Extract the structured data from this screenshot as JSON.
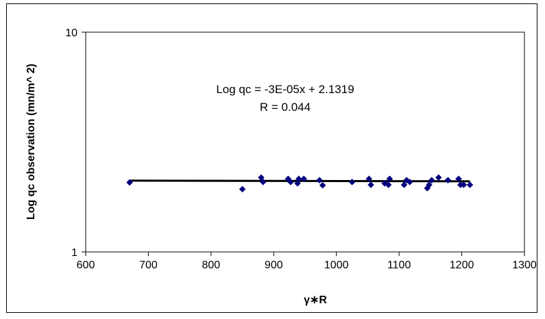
{
  "chart_data": {
    "type": "scatter",
    "xlabel": "γ∗R",
    "ylabel": "Log qc observation (mn/m^ 2)",
    "xlim": [
      600,
      1300
    ],
    "ylim": [
      1,
      10
    ],
    "y_scale": "log",
    "x_ticks": [
      "600",
      "700",
      "800",
      "900",
      "1000",
      "1100",
      "1200",
      "1300"
    ],
    "y_ticks": [
      "1",
      "10"
    ],
    "grid": false,
    "marker_color": "#00007f",
    "trend_color": "#000000",
    "annotations": [
      "Log qc = -3E-05x + 2.1319",
      "R = 0.044"
    ],
    "trendline": {
      "x": [
        670,
        1213
      ],
      "y": [
        2.11,
        2.095
      ]
    },
    "points": [
      {
        "x": 670,
        "y": 2.07
      },
      {
        "x": 850,
        "y": 1.93
      },
      {
        "x": 880,
        "y": 2.18
      },
      {
        "x": 883,
        "y": 2.08
      },
      {
        "x": 923,
        "y": 2.15
      },
      {
        "x": 927,
        "y": 2.08
      },
      {
        "x": 938,
        "y": 2.05
      },
      {
        "x": 940,
        "y": 2.15
      },
      {
        "x": 948,
        "y": 2.15
      },
      {
        "x": 973,
        "y": 2.12
      },
      {
        "x": 978,
        "y": 2.01
      },
      {
        "x": 1025,
        "y": 2.08
      },
      {
        "x": 1052,
        "y": 2.15
      },
      {
        "x": 1055,
        "y": 2.02
      },
      {
        "x": 1077,
        "y": 2.05
      },
      {
        "x": 1083,
        "y": 2.02
      },
      {
        "x": 1085,
        "y": 2.15
      },
      {
        "x": 1108,
        "y": 2.02
      },
      {
        "x": 1112,
        "y": 2.12
      },
      {
        "x": 1117,
        "y": 2.08
      },
      {
        "x": 1145,
        "y": 1.95
      },
      {
        "x": 1148,
        "y": 2.02
      },
      {
        "x": 1152,
        "y": 2.12
      },
      {
        "x": 1163,
        "y": 2.18
      },
      {
        "x": 1178,
        "y": 2.12
      },
      {
        "x": 1195,
        "y": 2.15
      },
      {
        "x": 1198,
        "y": 2.02
      },
      {
        "x": 1203,
        "y": 2.02
      },
      {
        "x": 1213,
        "y": 2.02
      }
    ]
  }
}
